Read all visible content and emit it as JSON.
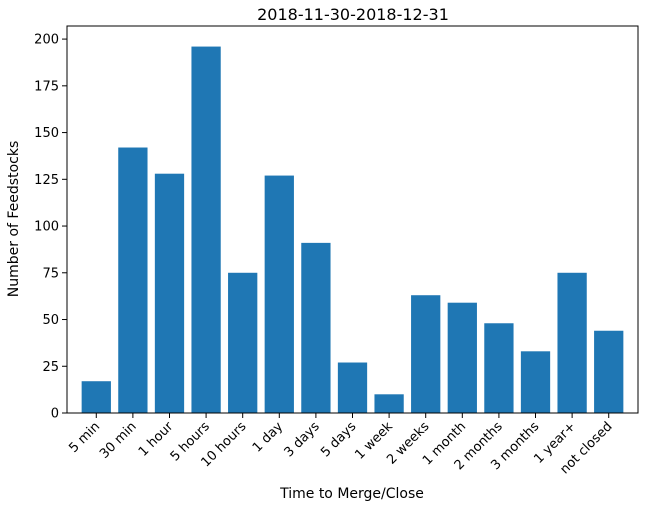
{
  "chart_data": {
    "type": "bar",
    "title": "2018-11-30-2018-12-31",
    "xlabel": "Time to Merge/Close",
    "ylabel": "Number of Feedstocks",
    "categories": [
      "5 min",
      "30 min",
      "1 hour",
      "5 hours",
      "10 hours",
      "1 day",
      "3 days",
      "5 days",
      "1 week",
      "2 weeks",
      "1 month",
      "2 months",
      "3 months",
      "1 year+",
      "not closed"
    ],
    "values": [
      17,
      142,
      128,
      196,
      75,
      127,
      91,
      27,
      10,
      63,
      59,
      48,
      33,
      75,
      44
    ],
    "ylim": [
      0,
      207
    ],
    "yticks": [
      0,
      25,
      50,
      75,
      100,
      125,
      150,
      175,
      200
    ],
    "bar_color": "#1f77b4",
    "grid": false,
    "legend": "none"
  }
}
